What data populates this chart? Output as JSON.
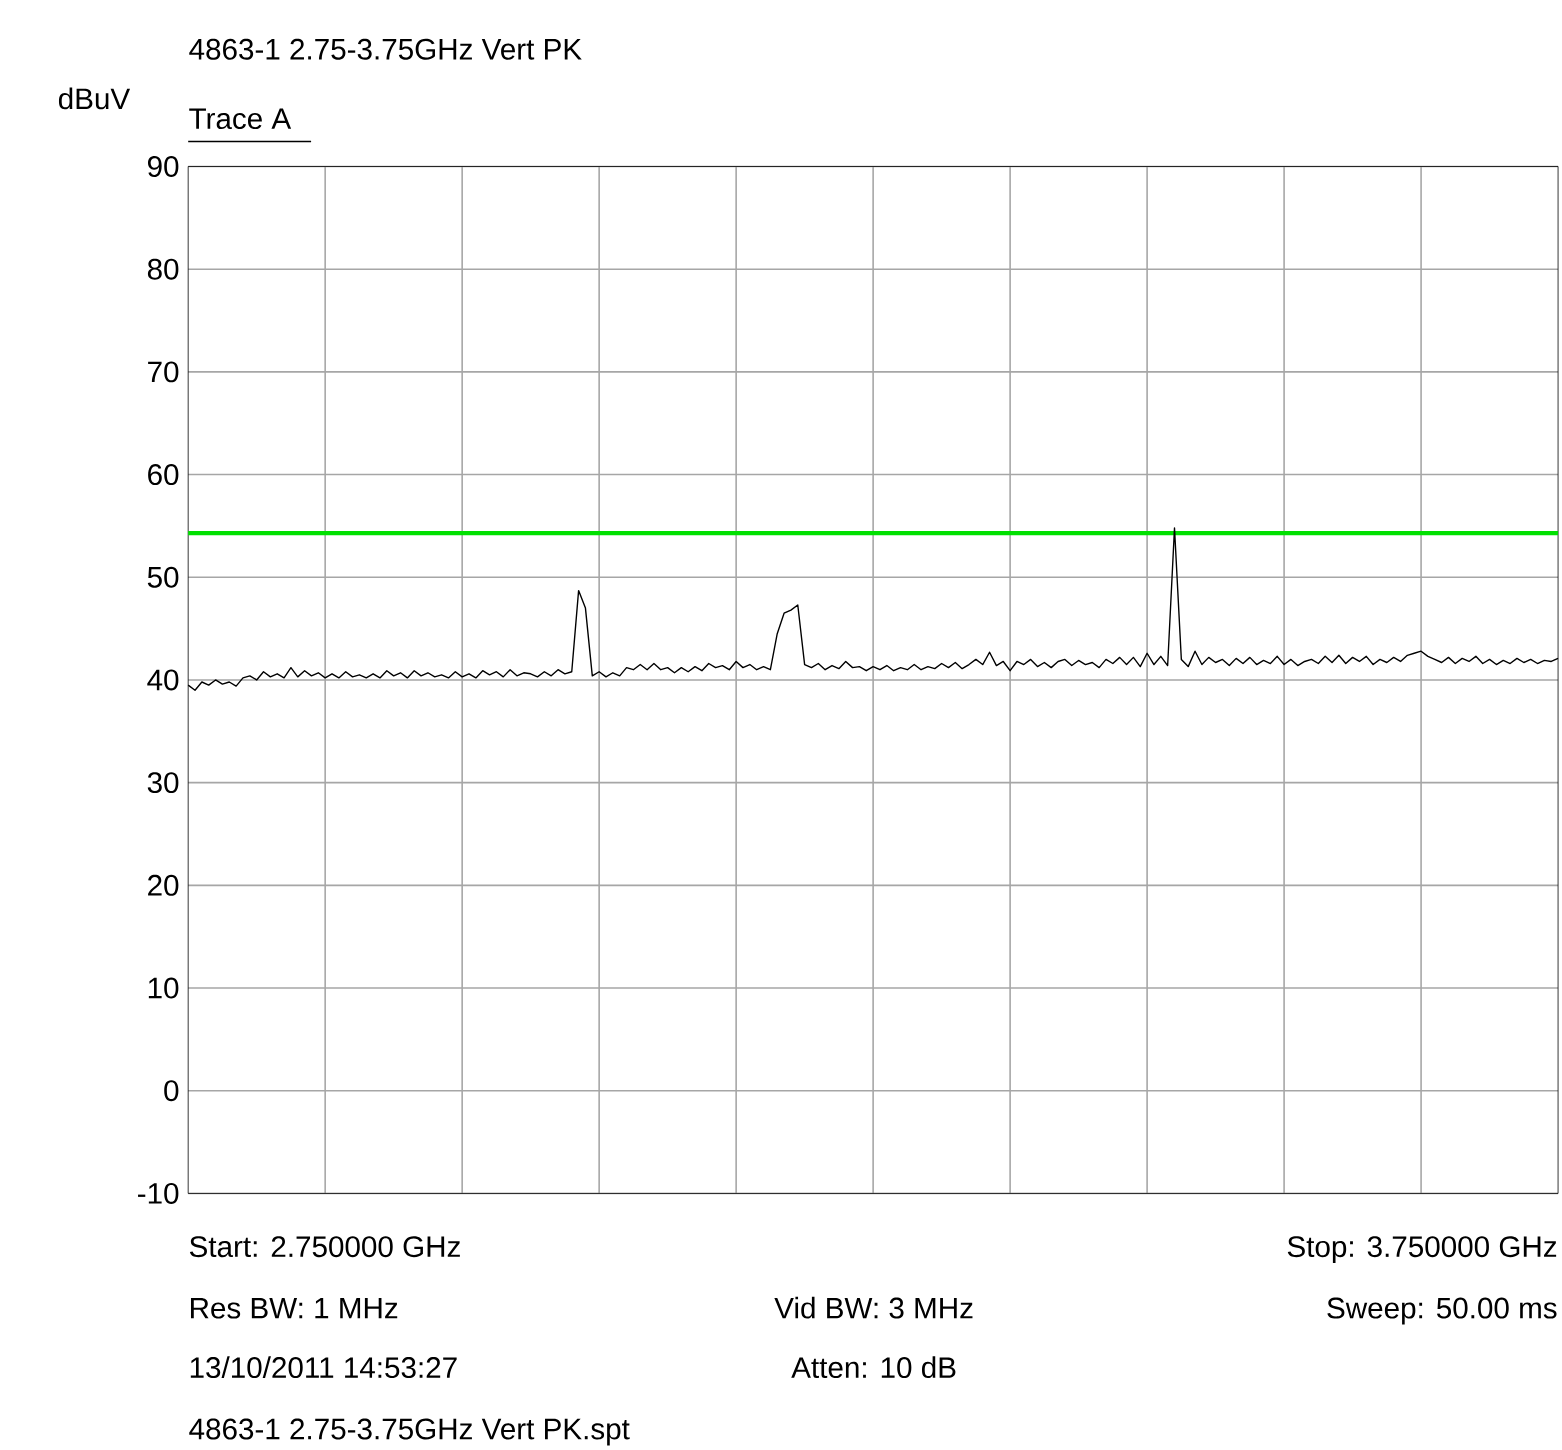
{
  "chart_data": {
    "type": "line",
    "title": "4863-1 2.75-3.75GHz Vert PK",
    "ylabel": "dBuV",
    "annotations": [
      "Start: 2.750000 GHz",
      "Stop: 3.750000 GHz",
      "Res BW: 1 MHz",
      "Vid BW: 3 MHz",
      "Sweep: 50.00 ms",
      "13/10/2011 14:53:27",
      "Atten: 10 dB",
      "4863-1 2.75-3.75GHz Vert PK.spt"
    ],
    "categories": [
      null,
      null,
      null,
      null,
      null,
      null,
      null,
      null,
      null,
      null,
      null,
      null,
      null,
      null,
      null,
      null,
      null,
      null,
      null,
      null,
      null,
      null,
      null,
      null,
      null,
      null,
      null,
      null,
      null,
      null,
      null,
      null,
      null,
      null,
      null,
      null,
      null,
      null,
      null,
      null,
      null,
      null,
      null,
      null,
      null,
      null,
      null,
      null,
      null,
      null,
      null,
      null,
      null,
      null,
      null,
      null,
      null,
      null,
      null,
      null,
      null,
      null,
      null,
      null,
      null,
      null,
      null,
      null,
      null,
      null,
      null,
      null,
      null,
      null,
      null,
      null,
      null,
      null,
      null,
      null,
      null,
      null,
      null,
      null,
      null,
      null,
      null,
      null,
      null,
      null,
      null,
      null,
      null,
      null,
      null,
      null,
      null,
      null,
      null,
      null,
      null,
      null,
      null,
      null,
      null,
      null,
      null,
      null,
      null,
      null,
      null,
      null,
      null,
      null,
      null,
      null,
      null,
      null,
      null,
      null,
      null,
      null,
      null,
      null,
      null,
      null,
      null,
      null,
      null,
      null,
      null,
      null,
      null,
      null,
      null,
      null,
      null,
      null,
      null,
      null,
      null,
      null,
      null,
      null,
      null,
      null,
      null,
      null,
      null,
      null,
      null,
      null,
      null,
      null,
      null,
      null,
      null,
      null,
      null,
      null,
      null,
      null,
      null,
      null,
      null,
      null,
      null,
      null,
      null,
      null,
      null,
      null,
      null,
      null,
      null,
      null,
      null,
      null,
      null,
      null,
      null,
      null,
      null,
      null,
      null,
      null,
      null,
      null,
      null,
      null,
      null,
      null,
      null,
      null,
      null,
      null,
      null,
      null,
      null,
      null,
      null
    ],
    "ylim": [
      -10,
      90
    ],
    "yticks": [
      -10,
      0,
      10,
      20,
      30,
      40,
      50,
      60,
      70,
      80,
      90
    ],
    "grid": true,
    "marker": "none",
    "line_style": "solid",
    "ref_lines": [
      {
        "axis": "y",
        "value": 54.3,
        "color": "#00e000"
      }
    ],
    "series": [
      {
        "name": "Trace A",
        "color": "#000000",
        "values": [
          39.5,
          39.0,
          39.8,
          39.5,
          40.0,
          39.6,
          39.8,
          39.4,
          40.2,
          40.4,
          40.0,
          40.8,
          40.3,
          40.6,
          40.2,
          41.2,
          40.3,
          40.9,
          40.4,
          40.7,
          40.2,
          40.6,
          40.2,
          40.8,
          40.3,
          40.5,
          40.2,
          40.6,
          40.2,
          40.9,
          40.4,
          40.7,
          40.2,
          40.9,
          40.4,
          40.7,
          40.3,
          40.5,
          40.2,
          40.8,
          40.3,
          40.6,
          40.2,
          40.9,
          40.5,
          40.8,
          40.3,
          41.0,
          40.4,
          40.7,
          40.6,
          40.3,
          40.8,
          40.4,
          41.0,
          40.6,
          40.8,
          48.7,
          47.0,
          40.4,
          40.8,
          40.3,
          40.7,
          40.4,
          41.2,
          41.0,
          41.5,
          41.0,
          41.6,
          41.0,
          41.2,
          40.7,
          41.2,
          40.8,
          41.3,
          40.9,
          41.6,
          41.2,
          41.4,
          41.0,
          41.8,
          41.2,
          41.5,
          41.0,
          41.3,
          41.0,
          44.5,
          46.5,
          46.8,
          47.3,
          41.5,
          41.2,
          41.6,
          41.0,
          41.4,
          41.1,
          41.8,
          41.2,
          41.3,
          40.9,
          41.3,
          41.0,
          41.4,
          40.9,
          41.2,
          41.0,
          41.5,
          41.0,
          41.3,
          41.1,
          41.6,
          41.2,
          41.7,
          41.1,
          41.5,
          42.0,
          41.5,
          42.7,
          41.4,
          41.8,
          40.9,
          41.8,
          41.5,
          42.0,
          41.3,
          41.7,
          41.2,
          41.8,
          42.0,
          41.4,
          41.9,
          41.5,
          41.7,
          41.2,
          42.0,
          41.6,
          42.2,
          41.5,
          42.2,
          41.3,
          42.6,
          41.5,
          42.3,
          41.4,
          54.8,
          42.0,
          41.3,
          42.8,
          41.5,
          42.2,
          41.7,
          42.0,
          41.4,
          42.1,
          41.6,
          42.2,
          41.5,
          41.9,
          41.6,
          42.3,
          41.5,
          42.0,
          41.4,
          41.8,
          42.0,
          41.6,
          42.3,
          41.7,
          42.4,
          41.6,
          42.2,
          41.8,
          42.3,
          41.5,
          42.0,
          41.7,
          42.2,
          41.8,
          42.4,
          42.6,
          42.8,
          42.3,
          42.0,
          41.7,
          42.2,
          41.6,
          42.1,
          41.8,
          42.3,
          41.6,
          42.0,
          41.5,
          41.9,
          41.6,
          42.1,
          41.7,
          42.0,
          41.6,
          41.9,
          41.8,
          42.1
        ]
      }
    ]
  }
}
